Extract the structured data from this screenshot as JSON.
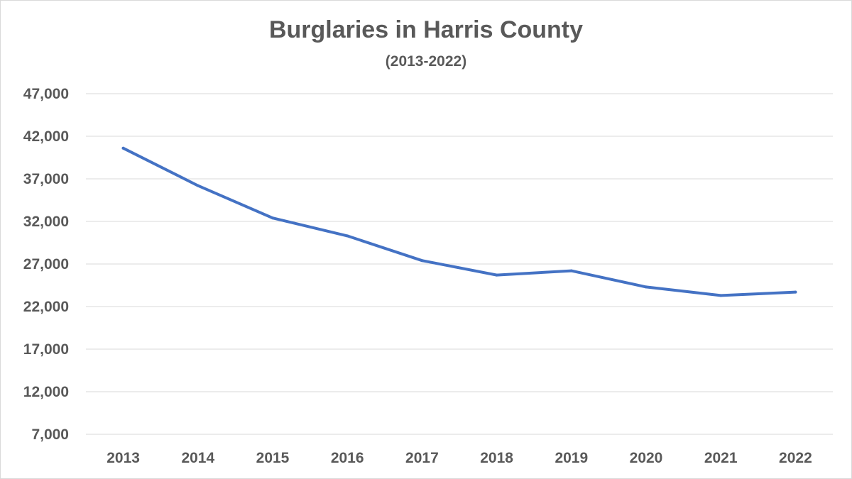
{
  "chart_data": {
    "type": "line",
    "title": "Burglaries in Harris County",
    "subtitle": "(2013-2022)",
    "xlabel": "",
    "ylabel": "",
    "categories": [
      "2013",
      "2014",
      "2015",
      "2016",
      "2017",
      "2018",
      "2019",
      "2020",
      "2021",
      "2022"
    ],
    "series": [
      {
        "values": [
          40600,
          36200,
          32400,
          30300,
          27400,
          25700,
          26200,
          24300,
          23300,
          23700
        ]
      }
    ],
    "ylim": [
      7000,
      47000
    ],
    "yticks": [
      7000,
      12000,
      17000,
      22000,
      27000,
      32000,
      37000,
      42000,
      47000
    ],
    "ytick_labels": [
      "7,000",
      "12,000",
      "17,000",
      "22,000",
      "27,000",
      "32,000",
      "37,000",
      "42,000",
      "47,000"
    ],
    "grid": true,
    "legend": "none",
    "line_color": "#4472c4",
    "text_color": "#595959",
    "grid_color": "#d9d9d9"
  }
}
